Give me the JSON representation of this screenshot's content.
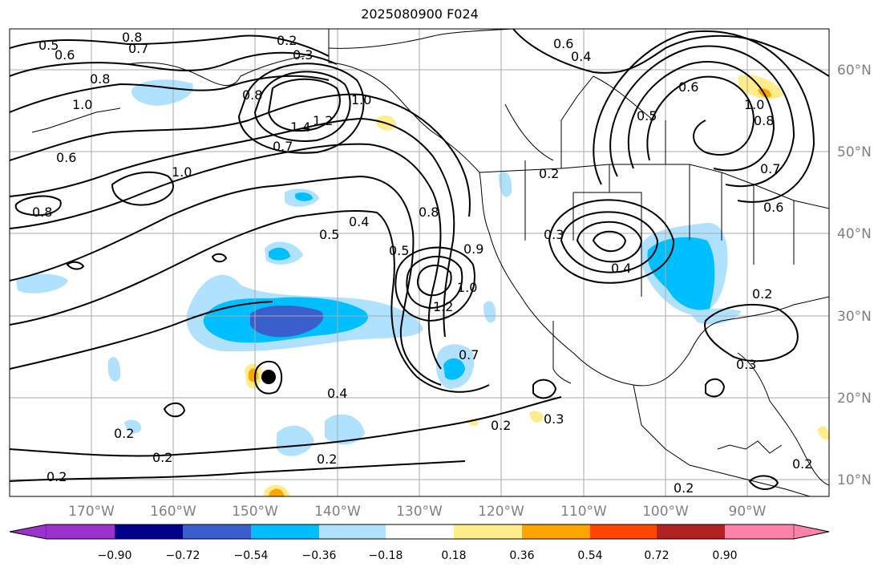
{
  "title": "2025080900 F024",
  "lat_labels": [
    "60°N",
    "50°N",
    "40°N",
    "30°N",
    "20°N",
    "10°N"
  ],
  "lon_labels": [
    "170°W",
    "160°W",
    "150°W",
    "140°W",
    "130°W",
    "120°W",
    "110°W",
    "100°W",
    "90°W"
  ],
  "colorbar": {
    "ticks": [
      "−0.90",
      "−0.72",
      "−0.54",
      "−0.36",
      "−0.18",
      "0.18",
      "0.36",
      "0.54",
      "0.72",
      "0.90"
    ],
    "colors": [
      "#9b32cd",
      "#00008b",
      "#3a5fcd",
      "#00bfff",
      "#b0e2ff",
      "#ffffff",
      "#ffec8b",
      "#ffa500",
      "#ff4500",
      "#b22222",
      "#ff82ab"
    ]
  },
  "contour_labels": [
    "0.5",
    "0.6",
    "0.8",
    "0.7",
    "0.2",
    "0.3",
    "0.6",
    "0.4",
    "0.8",
    "1.0",
    "0.8",
    "1.4",
    "1.2",
    "1.0",
    "0.7",
    "0.6",
    "1.0",
    "0.8",
    "0.5",
    "0.4",
    "0.5",
    "0.8",
    "0.9",
    "1.2",
    "1.0",
    "0.7",
    "0.4",
    "0.2",
    "0.3",
    "0.4",
    "0.2",
    "0.3",
    "0.2",
    "0.2",
    "0.2",
    "0.2",
    "0.5",
    "0.6",
    "1.0",
    "0.8",
    "0.7",
    "0.6",
    "0.2",
    "0.2",
    "0.3",
    "0.2"
  ],
  "storm_marker": "tropical-cyclone-center"
}
